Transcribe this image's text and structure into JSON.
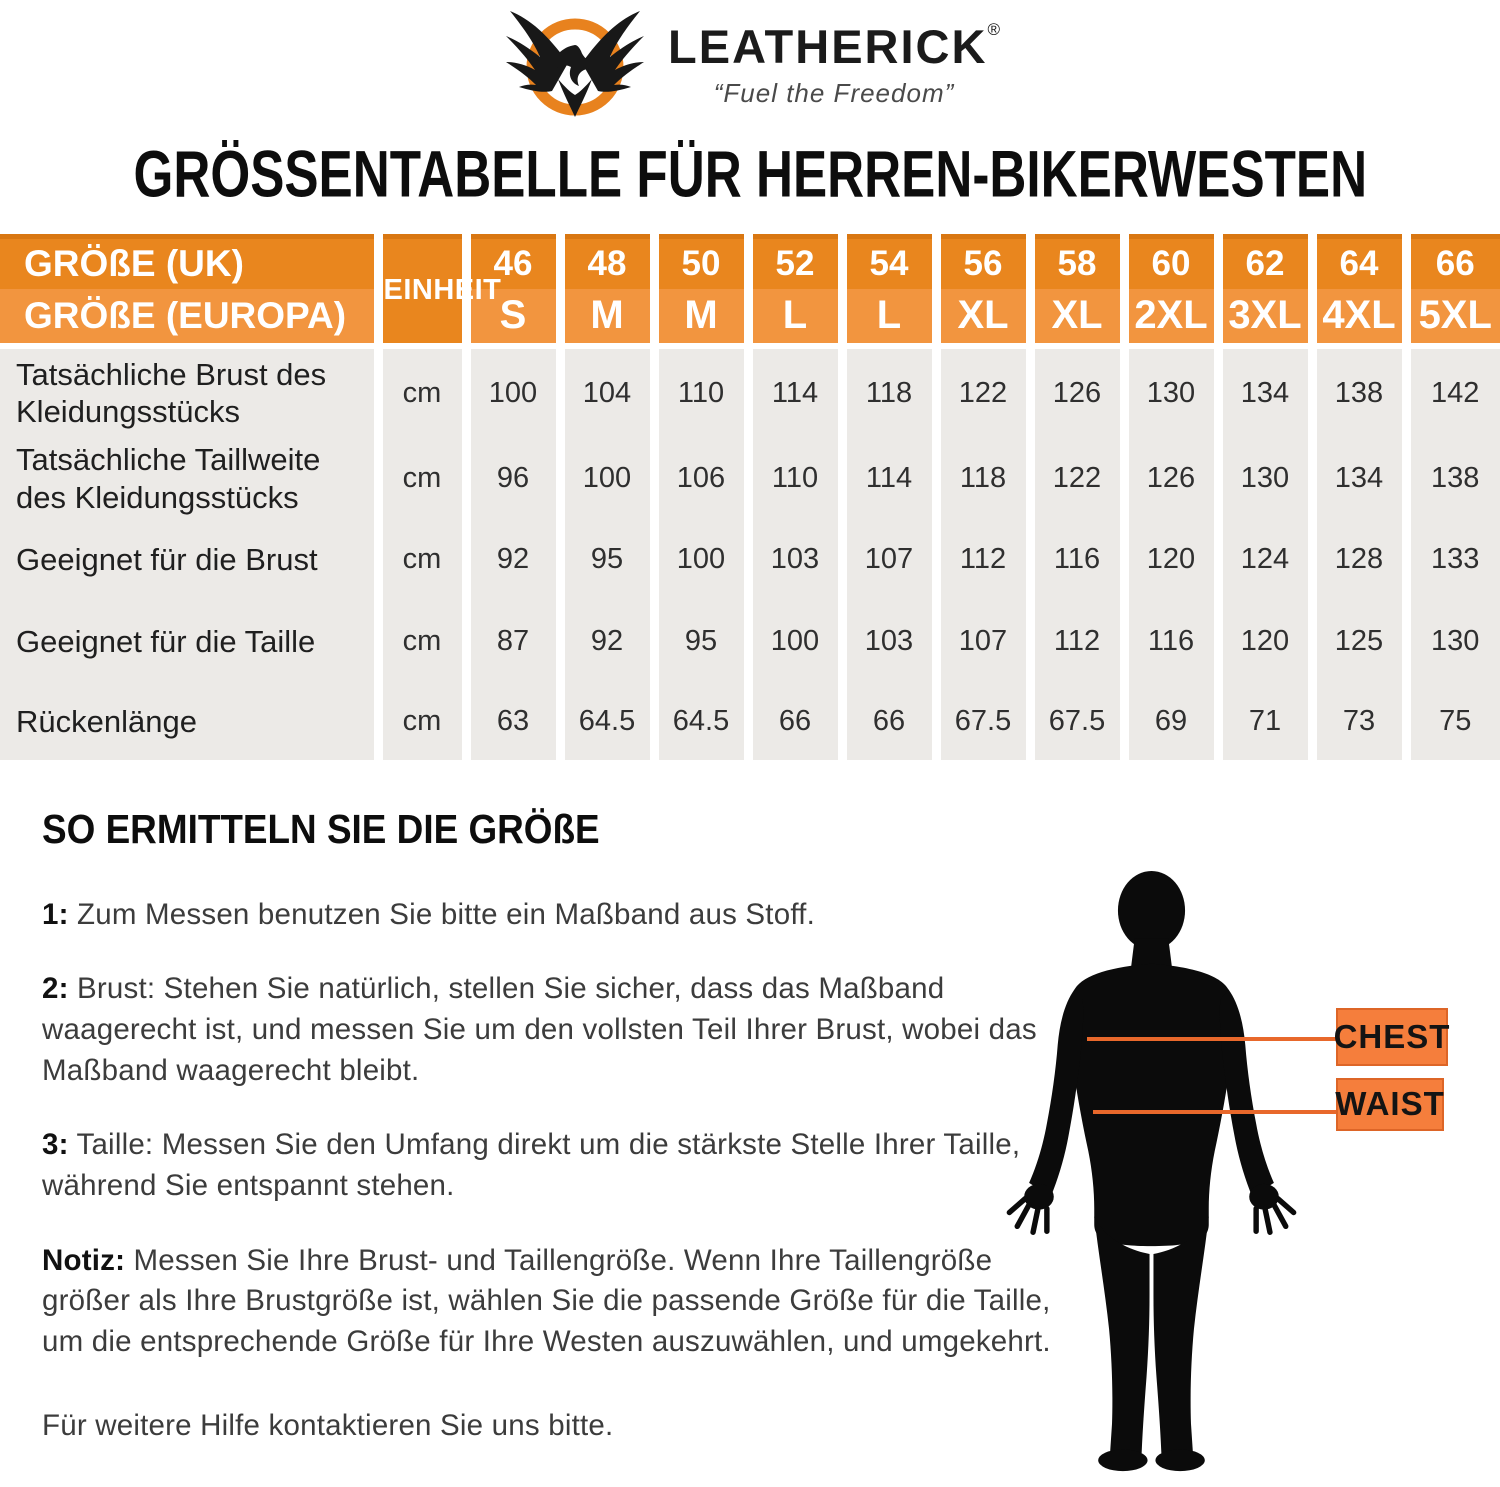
{
  "brand": {
    "name": "LEATHERICK",
    "registered": "®",
    "tagline": "“Fuel the Freedom”"
  },
  "title": "GRÖSSENTABELLE FÜR HERREN-BIKERWESTEN",
  "table": {
    "header": {
      "row1_label": "GRÖßE (UK)",
      "row2_label": "GRÖßE (EUROPA)",
      "unit_label": "EINHEIT",
      "sizes_uk": [
        "46",
        "48",
        "50",
        "52",
        "54",
        "56",
        "58",
        "60",
        "62",
        "64",
        "66"
      ],
      "sizes_eu": [
        "S",
        "M",
        "M",
        "L",
        "L",
        "XL",
        "XL",
        "2XL",
        "3XL",
        "4XL",
        "5XL"
      ]
    },
    "rows": [
      {
        "label": "Tatsächliche Brust des Kleidungsstücks",
        "unit": "cm",
        "values": [
          "100",
          "104",
          "110",
          "114",
          "118",
          "122",
          "126",
          "130",
          "134",
          "138",
          "142"
        ]
      },
      {
        "label": "Tatsächliche Taillweite des Kleidungsstücks",
        "unit": "cm",
        "values": [
          "96",
          "100",
          "106",
          "110",
          "114",
          "118",
          "122",
          "126",
          "130",
          "134",
          "138"
        ]
      },
      {
        "label": "Geeignet für die Brust",
        "unit": "cm",
        "values": [
          "92",
          "95",
          "100",
          "103",
          "107",
          "112",
          "116",
          "120",
          "124",
          "128",
          "133"
        ]
      },
      {
        "label": "Geeignet für die Taille",
        "unit": "cm",
        "values": [
          "87",
          "92",
          "95",
          "100",
          "103",
          "107",
          "112",
          "116",
          "120",
          "125",
          "130"
        ]
      },
      {
        "label": "Rückenlänge",
        "unit": "cm",
        "values": [
          "63",
          "64.5",
          "64.5",
          "66",
          "66",
          "67.5",
          "67.5",
          "69",
          "71",
          "73",
          "75"
        ]
      }
    ]
  },
  "howto": {
    "heading": "SO ERMITTELN SIE DIE GRÖßE",
    "steps": [
      {
        "prefix": "1:",
        "text": "Zum Messen benutzen Sie bitte ein Maßband aus Stoff."
      },
      {
        "prefix": "2:",
        "text": "Brust: Stehen Sie natürlich, stellen Sie sicher, dass das Maßband waagerecht ist, und messen Sie um den vollsten Teil Ihrer Brust, wobei das Maßband waagerecht bleibt."
      },
      {
        "prefix": "3:",
        "text": "Taille: Messen Sie den Umfang direkt um die stärkste Stelle Ihrer Taille, während Sie entspannt stehen."
      },
      {
        "prefix": "Notiz:",
        "text": "Messen Sie Ihre Brust- und Taillengröße. Wenn Ihre Taillengröße größer als Ihre Brustgröße ist, wählen Sie die passende Größe für die Taille, um die entsprechende Größe für Ihre Westen auszuwählen, und umgekehrt."
      }
    ],
    "contact": "Für weitere Hilfe kontaktieren Sie uns bitte."
  },
  "figure": {
    "chest_label": "CHEST",
    "waist_label": "WAIST"
  },
  "colors": {
    "brand_orange": "#E9861E",
    "header_orange_light": "#F2953F",
    "header_top_border": "#D97712",
    "table_body_gray": "#ECEAE7",
    "tag_orange": "#F57E3C",
    "line_orange": "#E8682B"
  }
}
